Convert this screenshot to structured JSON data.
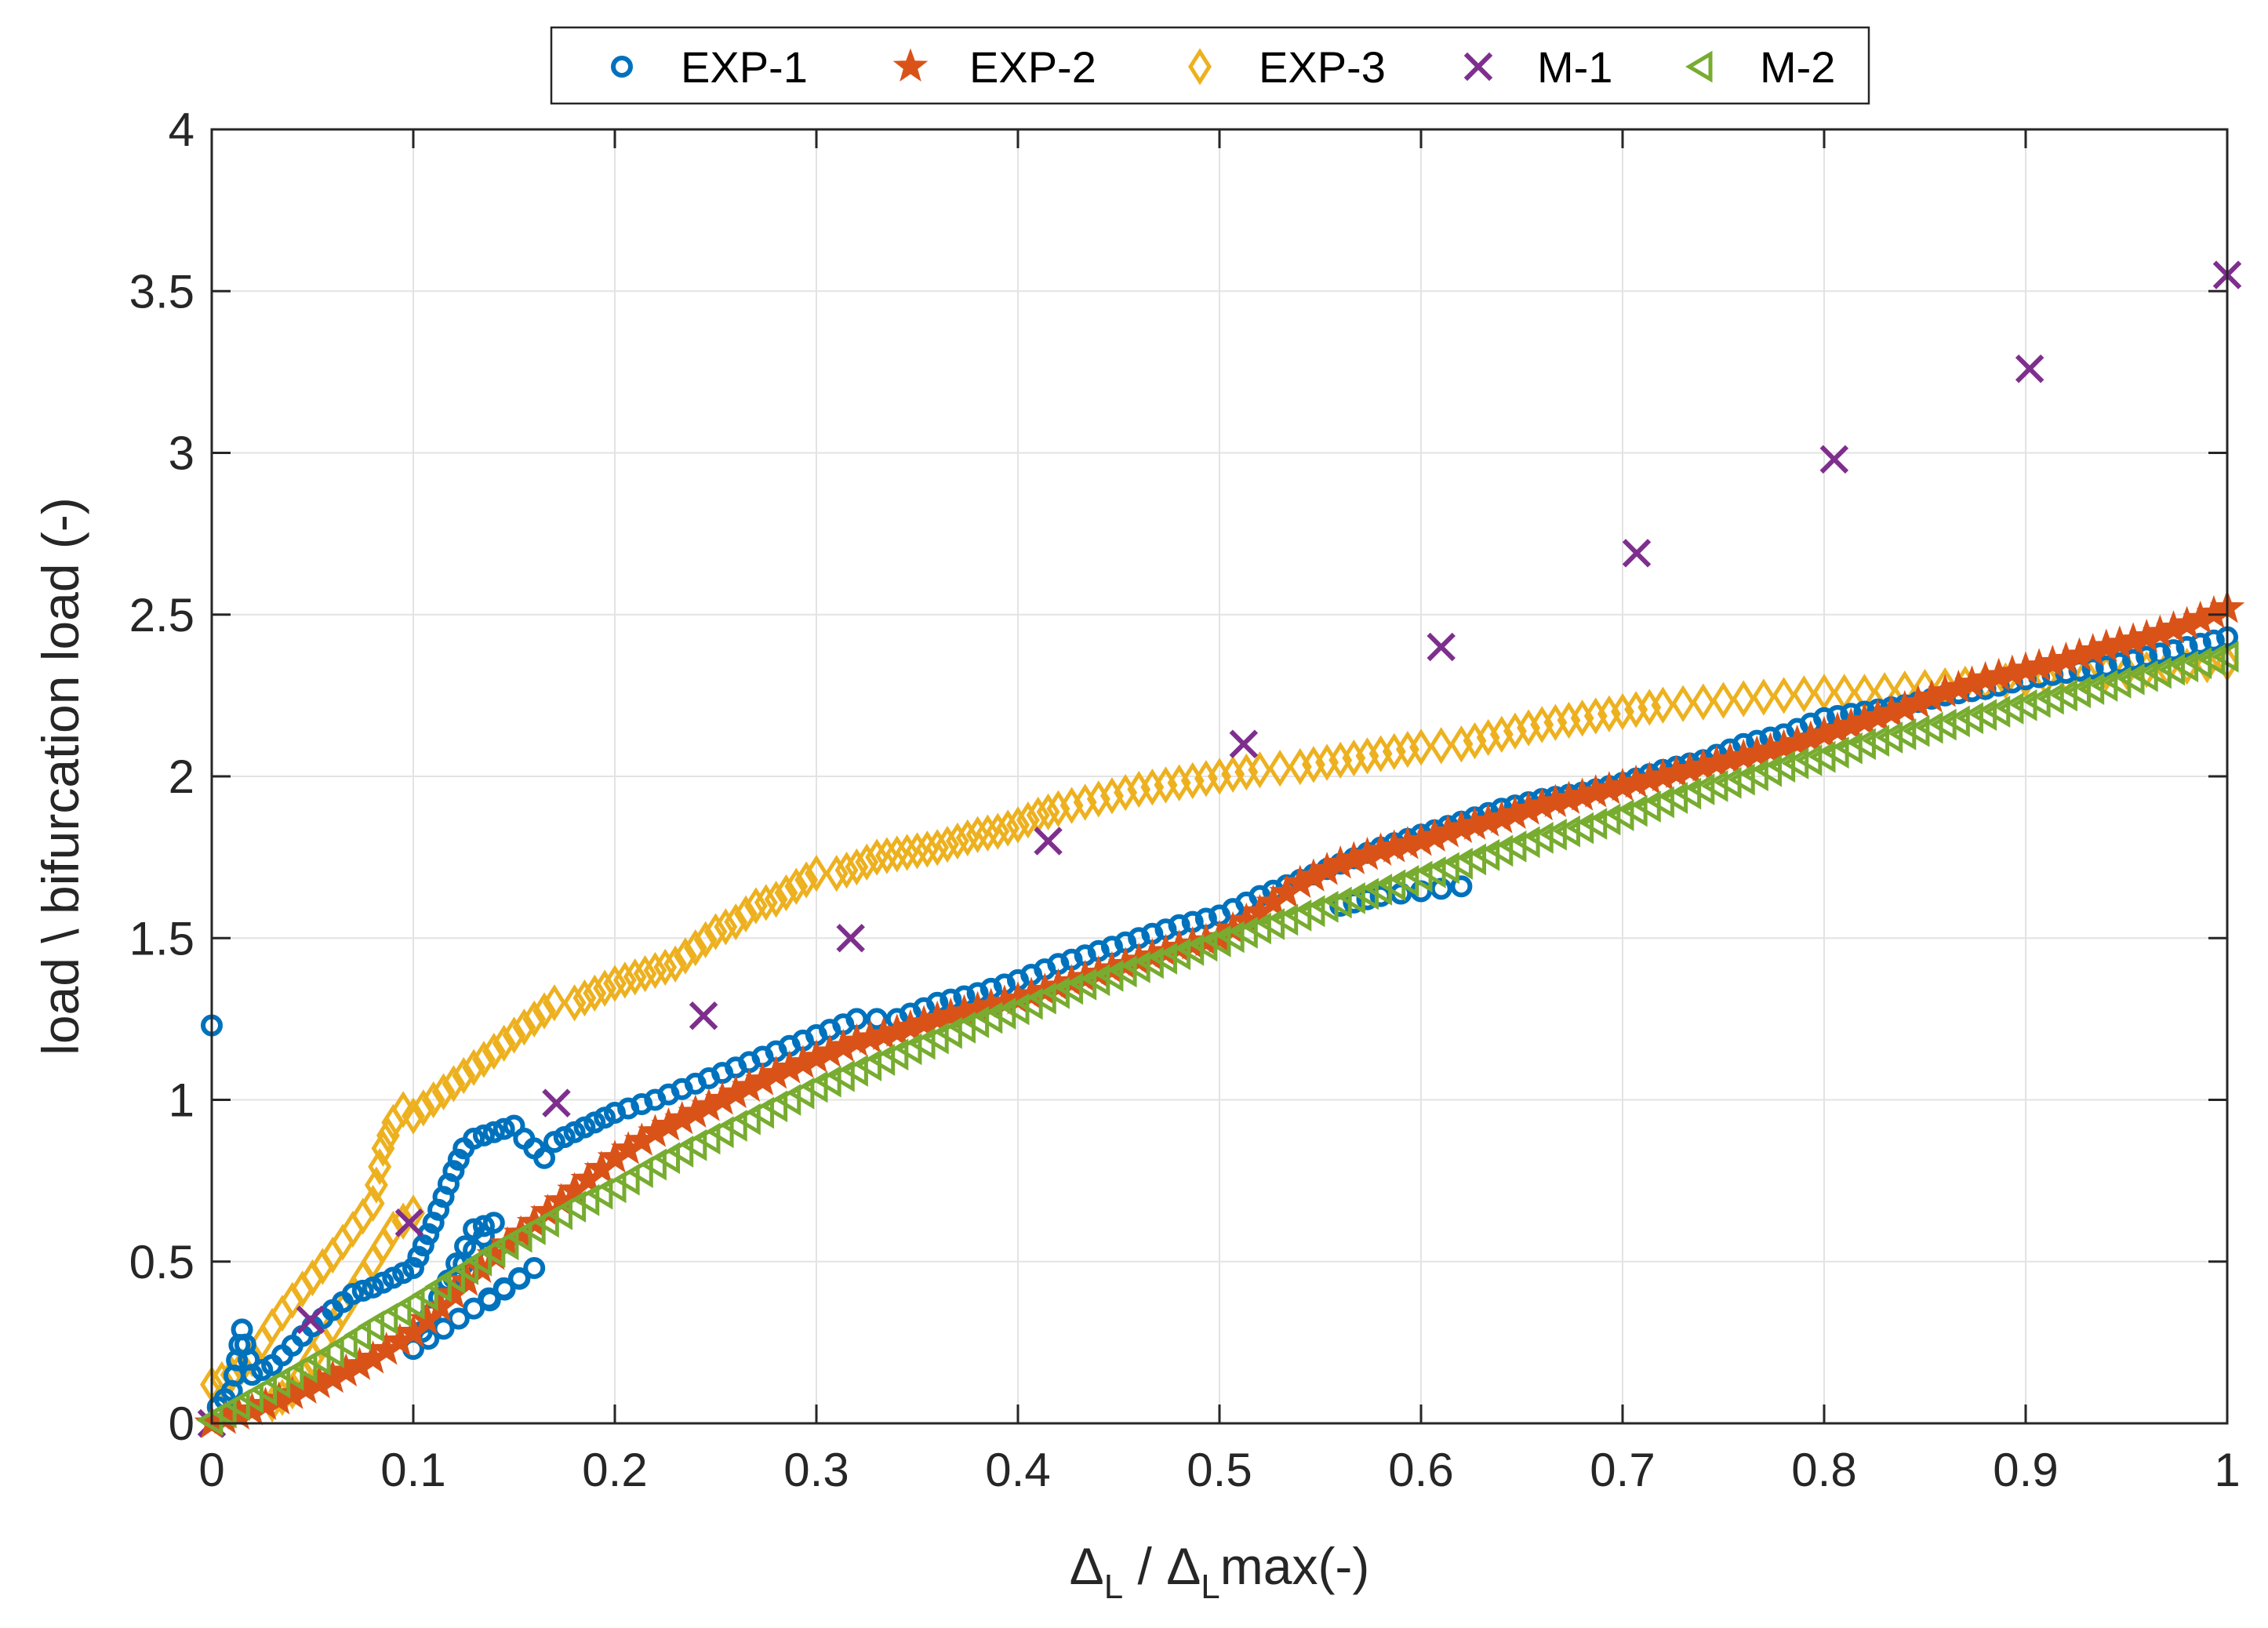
{
  "chart_data": {
    "type": "scatter",
    "title": "",
    "xlabel": "Δ_L / Δ_Lmax(-)",
    "xlabel_parts": {
      "delta1": "Δ",
      "sub1": "L",
      "slash": " / ",
      "delta2": "Δ",
      "sub2": "L",
      "tail": "max(-)"
    },
    "ylabel": "load \\ bifurcation load (-)",
    "xlim": [
      0,
      1
    ],
    "ylim": [
      0,
      4
    ],
    "xticks": [
      0,
      0.1,
      0.2,
      0.3,
      0.4,
      0.5,
      0.6,
      0.7,
      0.8,
      0.9,
      1
    ],
    "xtick_labels": [
      "0",
      "0.1",
      "0.2",
      "0.3",
      "0.4",
      "0.5",
      "0.6",
      "0.7",
      "0.8",
      "0.9",
      "1"
    ],
    "yticks": [
      0,
      0.5,
      1,
      1.5,
      2,
      2.5,
      3,
      3.5,
      4
    ],
    "ytick_labels": [
      "0",
      "0.5",
      "1",
      "1.5",
      "2",
      "2.5",
      "3",
      "3.5",
      "4"
    ],
    "grid": true,
    "legend_position": "top-center",
    "series": [
      {
        "name": "EXP-1",
        "marker": "circle",
        "color": "#0072BD",
        "x": [
          0,
          0.003,
          0.01,
          0.015,
          0.02,
          0.03,
          0.04,
          0.05,
          0.06,
          0.07,
          0.08,
          0.09,
          0.1,
          0.105,
          0.11,
          0.115,
          0.12,
          0.125,
          0.13,
          0.14,
          0.15,
          0.155,
          0.16,
          0.165,
          0.17,
          0.18,
          0.19,
          0.2,
          0.22,
          0.24,
          0.26,
          0.28,
          0.3,
          0.32,
          0.34,
          0.36,
          0.38,
          0.4,
          0.42,
          0.44,
          0.46,
          0.48,
          0.5,
          0.52,
          0.54,
          0.56,
          0.58,
          0.6,
          0.62,
          0.64,
          0.66,
          0.68,
          0.7,
          0.72,
          0.74,
          0.76,
          0.78,
          0.8,
          0.82,
          0.84,
          0.86,
          0.88,
          0.9,
          0.92,
          0.94,
          0.96,
          0.98,
          1.0,
          0.138,
          0.16,
          0.1,
          0.13,
          0.14,
          0.12,
          0.62,
          0.58,
          0.56
        ],
        "y": [
          1.23,
          0.05,
          0.1,
          0.29,
          0.15,
          0.18,
          0.24,
          0.3,
          0.35,
          0.4,
          0.42,
          0.45,
          0.48,
          0.55,
          0.62,
          0.7,
          0.78,
          0.85,
          0.88,
          0.9,
          0.92,
          0.88,
          0.85,
          0.82,
          0.87,
          0.9,
          0.93,
          0.96,
          1.0,
          1.05,
          1.1,
          1.15,
          1.2,
          1.25,
          1.25,
          1.3,
          1.33,
          1.37,
          1.42,
          1.46,
          1.5,
          1.54,
          1.57,
          1.63,
          1.68,
          1.73,
          1.78,
          1.82,
          1.86,
          1.9,
          1.93,
          1.95,
          1.98,
          2.02,
          2.05,
          2.1,
          2.13,
          2.18,
          2.2,
          2.22,
          2.25,
          2.27,
          2.3,
          2.32,
          2.34,
          2.37,
          2.4,
          2.43,
          0.38,
          0.48,
          0.23,
          0.6,
          0.62,
          0.45,
          1.66,
          1.63,
          1.6
        ]
      },
      {
        "name": "EXP-2",
        "marker": "star",
        "color": "#D95319",
        "x": [
          0,
          0.02,
          0.04,
          0.06,
          0.08,
          0.1,
          0.12,
          0.14,
          0.16,
          0.18,
          0.2,
          0.22,
          0.24,
          0.26,
          0.28,
          0.3,
          0.32,
          0.34,
          0.36,
          0.38,
          0.4,
          0.42,
          0.44,
          0.46,
          0.48,
          0.5,
          0.52,
          0.54,
          0.56,
          0.58,
          0.6,
          0.62,
          0.64,
          0.66,
          0.68,
          0.7,
          0.72,
          0.74,
          0.76,
          0.78,
          0.8,
          0.82,
          0.84,
          0.86,
          0.88,
          0.9,
          0.92,
          0.94,
          0.96,
          0.98,
          1.0
        ],
        "y": [
          0.0,
          0.04,
          0.09,
          0.14,
          0.2,
          0.28,
          0.4,
          0.52,
          0.62,
          0.72,
          0.82,
          0.9,
          0.96,
          1.02,
          1.08,
          1.13,
          1.18,
          1.21,
          1.25,
          1.28,
          1.31,
          1.35,
          1.39,
          1.43,
          1.47,
          1.5,
          1.58,
          1.67,
          1.73,
          1.77,
          1.8,
          1.84,
          1.87,
          1.91,
          1.94,
          1.97,
          2.0,
          2.03,
          2.06,
          2.09,
          2.13,
          2.17,
          2.21,
          2.26,
          2.3,
          2.33,
          2.36,
          2.4,
          2.43,
          2.47,
          2.52
        ]
      },
      {
        "name": "EXP-3",
        "marker": "diamond",
        "color": "#EDB120",
        "x": [
          0,
          0.01,
          0.02,
          0.03,
          0.04,
          0.05,
          0.06,
          0.07,
          0.08,
          0.085,
          0.09,
          0.095,
          0.1,
          0.11,
          0.12,
          0.13,
          0.14,
          0.15,
          0.16,
          0.17,
          0.18,
          0.19,
          0.2,
          0.21,
          0.22,
          0.23,
          0.24,
          0.25,
          0.26,
          0.27,
          0.28,
          0.29,
          0.3,
          0.31,
          0.32,
          0.33,
          0.34,
          0.35,
          0.36,
          0.37,
          0.38,
          0.39,
          0.4,
          0.41,
          0.42,
          0.44,
          0.46,
          0.48,
          0.5,
          0.52,
          0.54,
          0.56,
          0.58,
          0.6,
          0.62,
          0.64,
          0.66,
          0.68,
          0.7,
          0.72,
          0.74,
          0.76,
          0.78,
          0.8,
          0.82,
          0.84,
          0.86,
          0.88,
          0.9,
          0.92,
          0.94,
          0.96,
          0.98,
          1.0,
          0.03,
          0.04,
          0.09,
          0.1
        ],
        "y": [
          0.12,
          0.15,
          0.2,
          0.3,
          0.38,
          0.45,
          0.52,
          0.6,
          0.68,
          0.85,
          0.93,
          0.97,
          0.95,
          1.0,
          1.05,
          1.1,
          1.15,
          1.2,
          1.25,
          1.3,
          1.3,
          1.33,
          1.36,
          1.38,
          1.4,
          1.42,
          1.47,
          1.52,
          1.55,
          1.6,
          1.62,
          1.66,
          1.7,
          1.7,
          1.72,
          1.75,
          1.76,
          1.77,
          1.78,
          1.8,
          1.82,
          1.83,
          1.85,
          1.88,
          1.9,
          1.93,
          1.96,
          1.98,
          2.0,
          2.02,
          2.03,
          2.05,
          2.07,
          2.09,
          2.1,
          2.13,
          2.16,
          2.18,
          2.2,
          2.22,
          2.23,
          2.24,
          2.25,
          2.26,
          2.26,
          2.27,
          2.28,
          2.29,
          2.3,
          2.31,
          2.32,
          2.33,
          2.34,
          2.35,
          0.06,
          0.1,
          0.6,
          0.65
        ]
      },
      {
        "name": "M-1",
        "marker": "x",
        "color": "#7E2F8E",
        "x": [
          0.0,
          0.049,
          0.098,
          0.171,
          0.244,
          0.317,
          0.415,
          0.512,
          0.61,
          0.707,
          0.805,
          0.902,
          1.0
        ],
        "y": [
          0.0,
          0.32,
          0.62,
          0.99,
          1.26,
          1.5,
          1.8,
          2.1,
          2.4,
          2.69,
          2.98,
          3.26,
          3.55
        ]
      },
      {
        "name": "M-2",
        "marker": "triangle-left",
        "color": "#77AC30",
        "x": [
          0,
          0.02,
          0.04,
          0.06,
          0.08,
          0.1,
          0.12,
          0.14,
          0.16,
          0.18,
          0.2,
          0.22,
          0.24,
          0.26,
          0.28,
          0.3,
          0.32,
          0.34,
          0.36,
          0.38,
          0.4,
          0.42,
          0.44,
          0.46,
          0.48,
          0.5,
          0.52,
          0.54,
          0.56,
          0.58,
          0.6,
          0.62,
          0.64,
          0.66,
          0.68,
          0.7,
          0.72,
          0.74,
          0.76,
          0.78,
          0.8,
          0.82,
          0.84,
          0.86,
          0.88,
          0.9,
          0.92,
          0.94,
          0.96,
          0.98,
          1.0
        ],
        "y": [
          0.01,
          0.08,
          0.15,
          0.22,
          0.3,
          0.37,
          0.45,
          0.53,
          0.6,
          0.67,
          0.73,
          0.8,
          0.86,
          0.92,
          0.98,
          1.04,
          1.09,
          1.14,
          1.19,
          1.24,
          1.28,
          1.33,
          1.37,
          1.41,
          1.45,
          1.49,
          1.53,
          1.57,
          1.61,
          1.65,
          1.69,
          1.73,
          1.77,
          1.81,
          1.84,
          1.88,
          1.92,
          1.96,
          1.99,
          2.03,
          2.06,
          2.1,
          2.13,
          2.16,
          2.19,
          2.22,
          2.25,
          2.28,
          2.31,
          2.34,
          2.37
        ]
      }
    ]
  }
}
